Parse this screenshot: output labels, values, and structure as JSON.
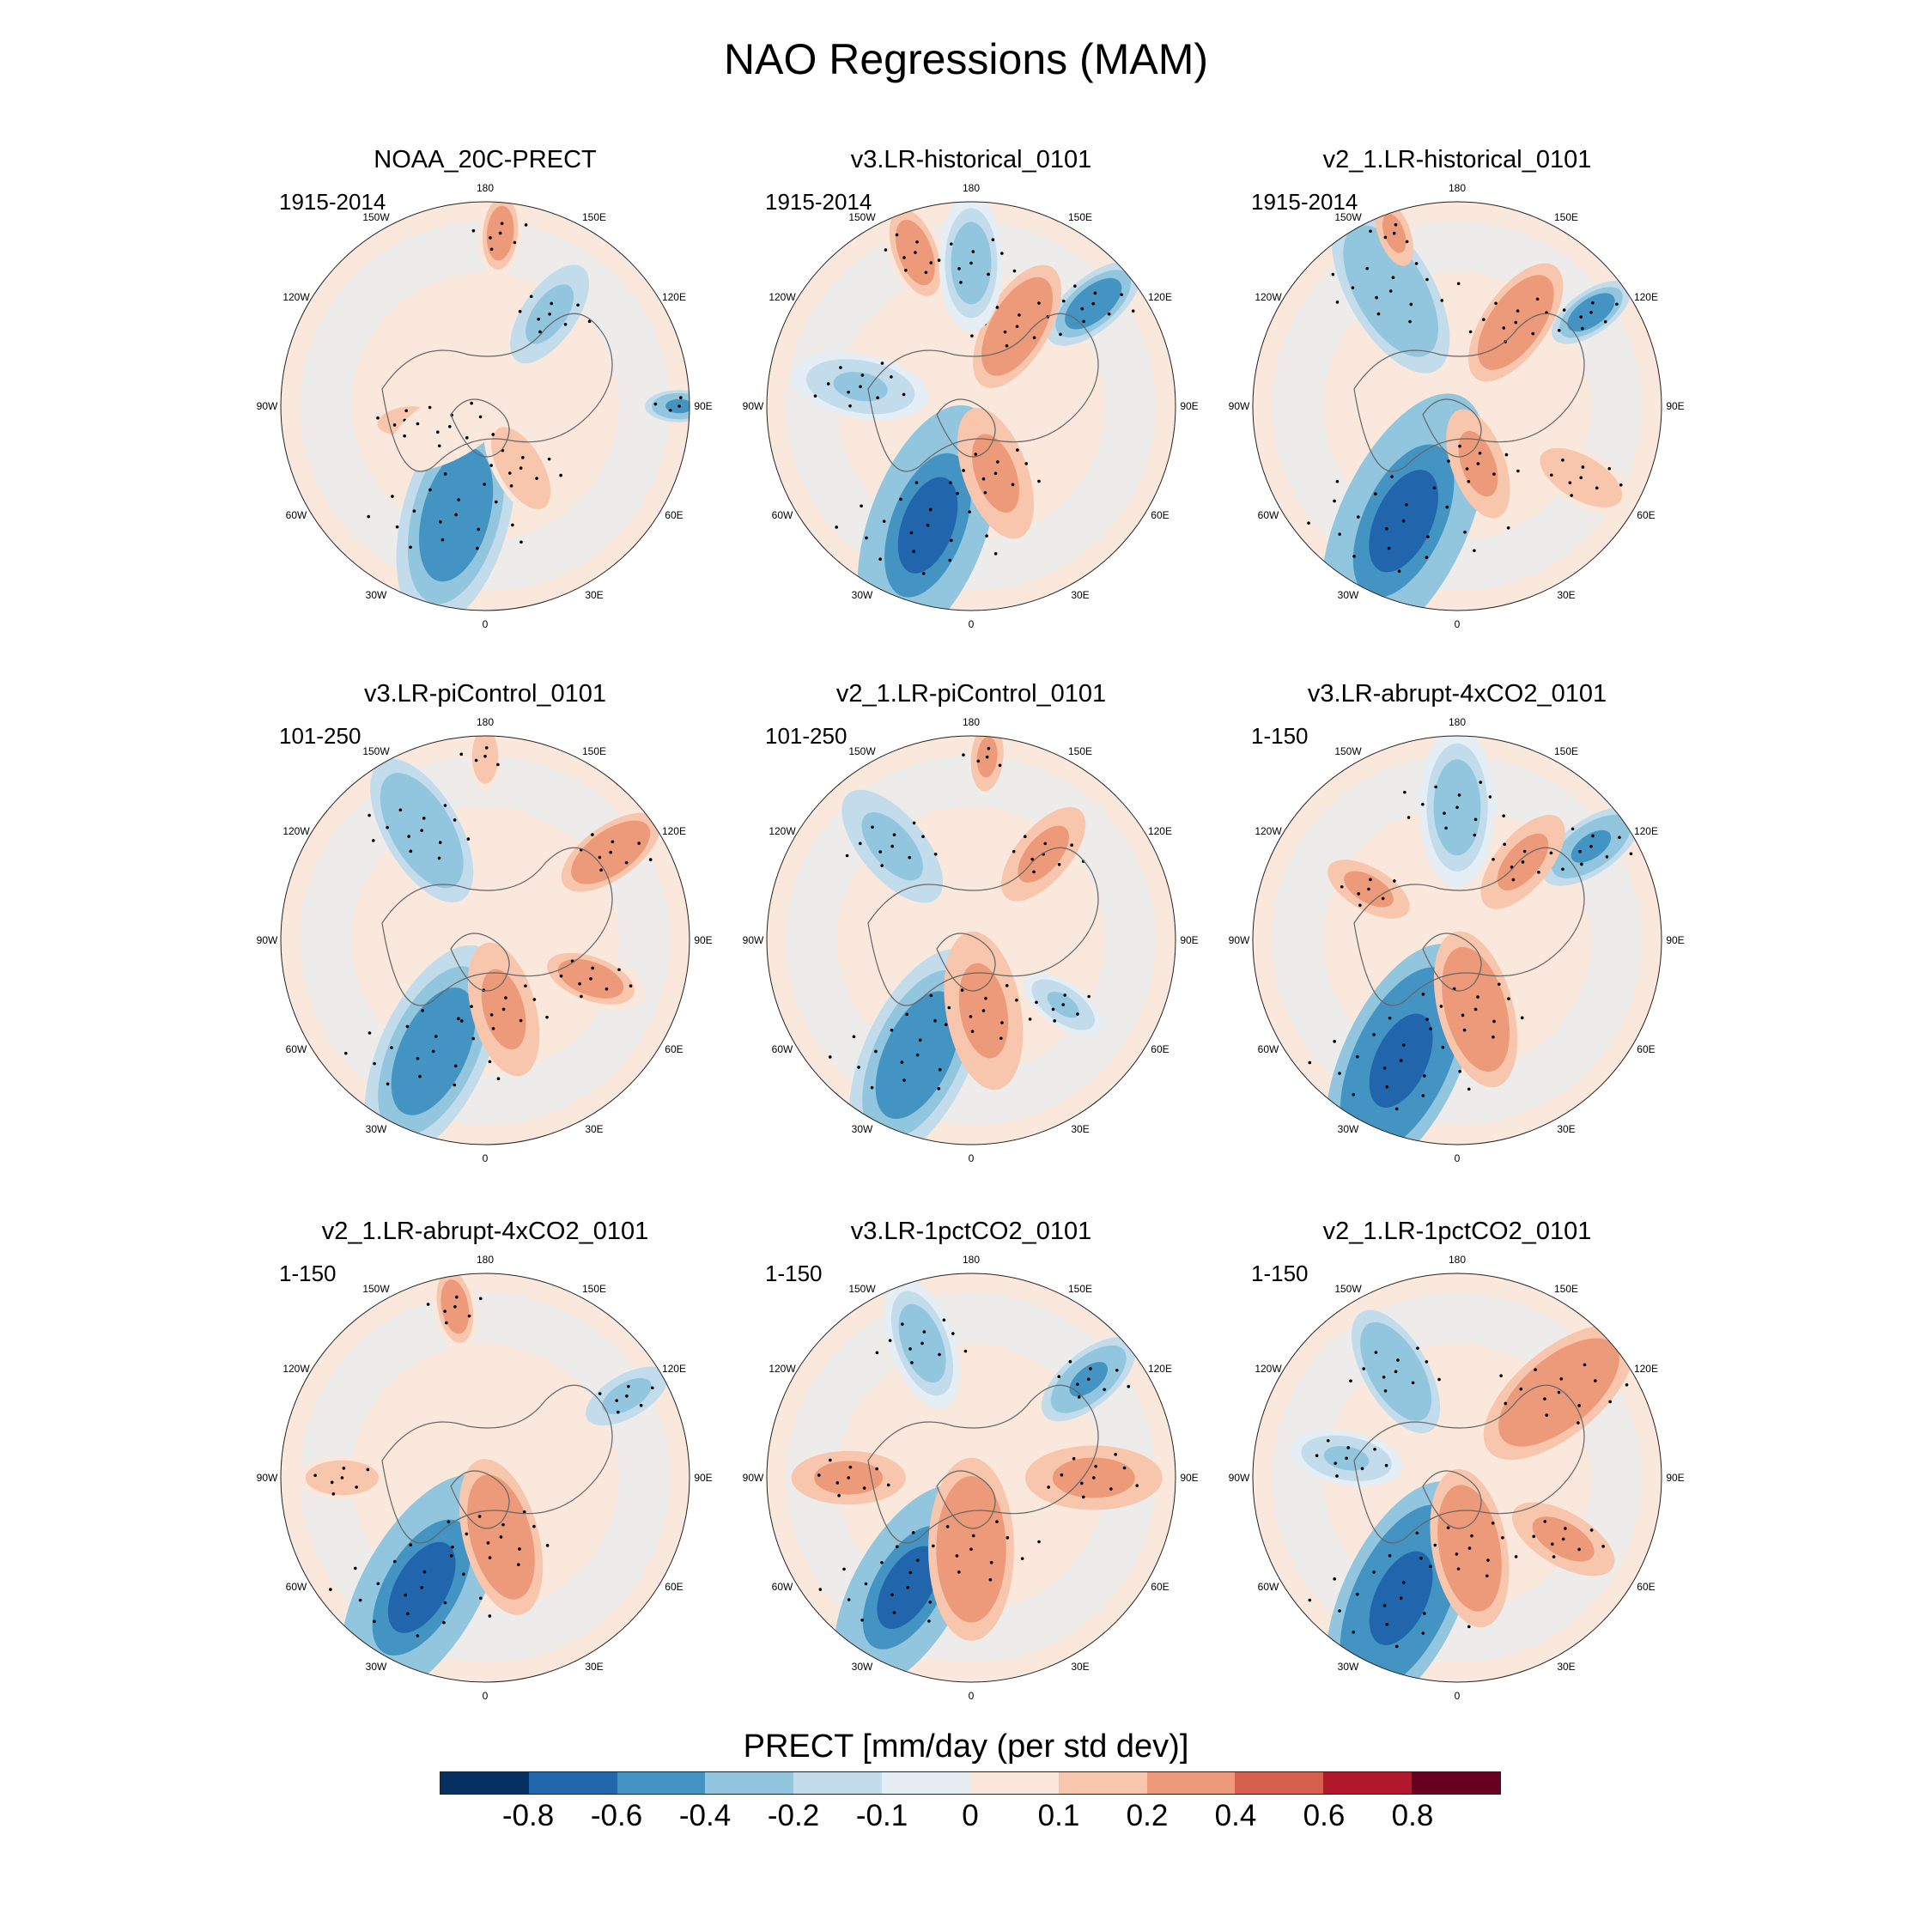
{
  "title": "NAO Regressions (MAM)",
  "chart_data": {
    "type": "heatmap",
    "projection": "north polar stereographic",
    "variable": "PRECT",
    "colorbar_label": "PRECT [mm/day (per std dev)]",
    "levels": [
      "-0.8",
      "-0.6",
      "-0.4",
      "-0.2",
      "-0.1",
      "0",
      "0.1",
      "0.2",
      "0.4",
      "0.6",
      "0.8"
    ],
    "colors": [
      "#053061",
      "#2166ac",
      "#4393c3",
      "#92c5de",
      "#c3dcec",
      "#e4eef4",
      "#fbe8dd",
      "#f7c6ad",
      "#ec9a79",
      "#d6604d",
      "#b2182b",
      "#67001f"
    ],
    "longitude_labels": [
      "180",
      "150E",
      "120E",
      "90E",
      "60E",
      "30E",
      "0",
      "30W",
      "60W",
      "90W",
      "120W",
      "150W"
    ],
    "panels": [
      {
        "title": "NOAA_20C-PRECT",
        "period": "1915-2014",
        "anomalies": [
          {
            "lon": -15,
            "r": 0.55,
            "v": -0.5,
            "s": 1.0
          },
          {
            "lon": 30,
            "r": 0.35,
            "v": 0.2,
            "s": 0.5
          },
          {
            "lon": -80,
            "r": 0.4,
            "v": 0.15,
            "s": 0.4
          },
          {
            "lon": 145,
            "r": 0.55,
            "v": -0.3,
            "s": 0.5
          },
          {
            "lon": 175,
            "r": 0.85,
            "v": 0.25,
            "s": 0.4
          },
          {
            "lon": 90,
            "r": 0.95,
            "v": -0.4,
            "s": 0.3
          },
          {
            "lon": -60,
            "r": 0.2,
            "v": 0.1,
            "s": 0.6
          }
        ]
      },
      {
        "title": "v3.LR-historical_0101",
        "period": "1915-2014",
        "anomalies": [
          {
            "lon": -20,
            "r": 0.62,
            "v": -0.6,
            "s": 1.1
          },
          {
            "lon": 20,
            "r": 0.35,
            "v": 0.3,
            "s": 0.6
          },
          {
            "lon": 130,
            "r": 0.78,
            "v": -0.55,
            "s": 0.5
          },
          {
            "lon": 150,
            "r": 0.45,
            "v": 0.35,
            "s": 0.6
          },
          {
            "lon": -160,
            "r": 0.8,
            "v": 0.25,
            "s": 0.5
          },
          {
            "lon": -100,
            "r": 0.55,
            "v": -0.2,
            "s": 0.6
          },
          {
            "lon": 180,
            "r": 0.7,
            "v": -0.25,
            "s": 0.6
          }
        ]
      },
      {
        "title": "v2_1.LR-historical_0101",
        "period": "1915-2014",
        "anomalies": [
          {
            "lon": -25,
            "r": 0.62,
            "v": -0.6,
            "s": 1.2
          },
          {
            "lon": 20,
            "r": 0.3,
            "v": 0.3,
            "s": 0.5
          },
          {
            "lon": 125,
            "r": 0.8,
            "v": -0.55,
            "s": 0.4
          },
          {
            "lon": 145,
            "r": 0.5,
            "v": 0.35,
            "s": 0.6
          },
          {
            "lon": -150,
            "r": 0.65,
            "v": -0.35,
            "s": 0.8
          },
          {
            "lon": -160,
            "r": 0.9,
            "v": 0.3,
            "s": 0.3
          },
          {
            "lon": 60,
            "r": 0.7,
            "v": 0.2,
            "s": 0.5
          }
        ]
      },
      {
        "title": "v3.LR-piControl_0101",
        "period": "101-250",
        "anomalies": [
          {
            "lon": -25,
            "r": 0.6,
            "v": -0.55,
            "s": 1.0
          },
          {
            "lon": 15,
            "r": 0.35,
            "v": 0.3,
            "s": 0.6
          },
          {
            "lon": 125,
            "r": 0.75,
            "v": 0.4,
            "s": 0.5
          },
          {
            "lon": -150,
            "r": 0.62,
            "v": -0.35,
            "s": 0.7
          },
          {
            "lon": 70,
            "r": 0.55,
            "v": 0.25,
            "s": 0.5
          },
          {
            "lon": 180,
            "r": 0.9,
            "v": 0.2,
            "s": 0.3
          }
        ]
      },
      {
        "title": "v2_1.LR-piControl_0101",
        "period": "101-250",
        "anomalies": [
          {
            "lon": -25,
            "r": 0.62,
            "v": -0.55,
            "s": 1.0
          },
          {
            "lon": 10,
            "r": 0.35,
            "v": 0.3,
            "s": 0.7
          },
          {
            "lon": 140,
            "r": 0.55,
            "v": 0.3,
            "s": 0.5
          },
          {
            "lon": -140,
            "r": 0.6,
            "v": -0.3,
            "s": 0.6
          },
          {
            "lon": 55,
            "r": 0.55,
            "v": -0.2,
            "s": 0.4
          },
          {
            "lon": 175,
            "r": 0.9,
            "v": 0.3,
            "s": 0.3
          }
        ]
      },
      {
        "title": "v3.LR-abrupt-4xCO2_0101",
        "period": "1-150",
        "anomalies": [
          {
            "lon": -25,
            "r": 0.65,
            "v": -0.7,
            "s": 1.1
          },
          {
            "lon": 15,
            "r": 0.35,
            "v": 0.35,
            "s": 0.7
          },
          {
            "lon": 125,
            "r": 0.8,
            "v": -0.45,
            "s": 0.5
          },
          {
            "lon": 140,
            "r": 0.5,
            "v": 0.3,
            "s": 0.5
          },
          {
            "lon": -120,
            "r": 0.5,
            "v": 0.3,
            "s": 0.4
          },
          {
            "lon": 180,
            "r": 0.65,
            "v": -0.25,
            "s": 0.7
          }
        ]
      },
      {
        "title": "v2_1.LR-abrupt-4xCO2_0101",
        "period": "1-150",
        "anomalies": [
          {
            "lon": -30,
            "r": 0.62,
            "v": -0.6,
            "s": 1.1
          },
          {
            "lon": 15,
            "r": 0.3,
            "v": 0.4,
            "s": 0.7
          },
          {
            "lon": 120,
            "r": 0.8,
            "v": -0.3,
            "s": 0.4
          },
          {
            "lon": -170,
            "r": 0.85,
            "v": 0.25,
            "s": 0.4
          },
          {
            "lon": -90,
            "r": 0.7,
            "v": 0.2,
            "s": 0.4
          }
        ]
      },
      {
        "title": "v3.LR-1pctCO2_0101",
        "period": "1-150",
        "anomalies": [
          {
            "lon": -30,
            "r": 0.62,
            "v": -0.6,
            "s": 1.0
          },
          {
            "lon": 0,
            "r": 0.35,
            "v": 0.35,
            "s": 0.8
          },
          {
            "lon": 130,
            "r": 0.75,
            "v": -0.45,
            "s": 0.5
          },
          {
            "lon": 90,
            "r": 0.6,
            "v": 0.3,
            "s": 0.6
          },
          {
            "lon": -90,
            "r": 0.6,
            "v": 0.3,
            "s": 0.5
          },
          {
            "lon": -160,
            "r": 0.7,
            "v": -0.25,
            "s": 0.6
          }
        ]
      },
      {
        "title": "v2_1.LR-1pctCO2_0101",
        "period": "1-150",
        "anomalies": [
          {
            "lon": -25,
            "r": 0.65,
            "v": -0.7,
            "s": 1.1
          },
          {
            "lon": 10,
            "r": 0.35,
            "v": 0.35,
            "s": 0.7
          },
          {
            "lon": 130,
            "r": 0.65,
            "v": 0.4,
            "s": 0.8
          },
          {
            "lon": -150,
            "r": 0.6,
            "v": -0.35,
            "s": 0.6
          },
          {
            "lon": 60,
            "r": 0.6,
            "v": 0.3,
            "s": 0.5
          },
          {
            "lon": -100,
            "r": 0.55,
            "v": -0.2,
            "s": 0.5
          }
        ]
      }
    ]
  }
}
